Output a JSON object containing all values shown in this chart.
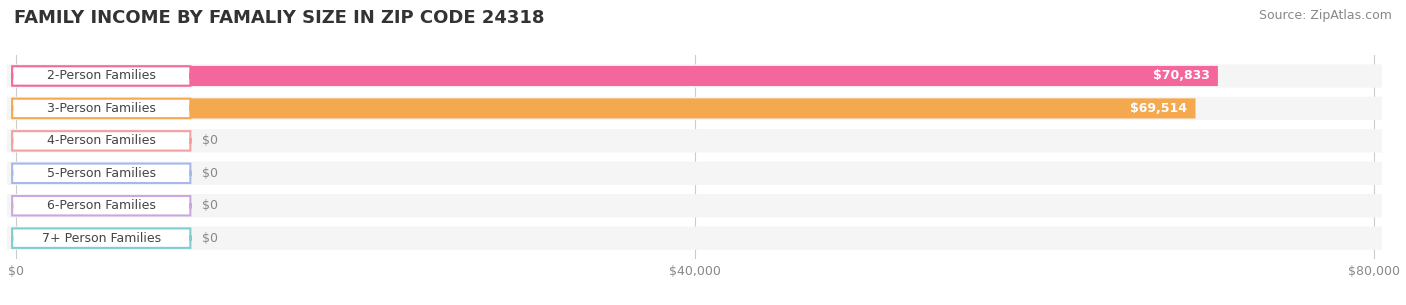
{
  "title": "FAMILY INCOME BY FAMALIY SIZE IN ZIP CODE 24318",
  "source": "Source: ZipAtlas.com",
  "categories": [
    "2-Person Families",
    "3-Person Families",
    "4-Person Families",
    "5-Person Families",
    "6-Person Families",
    "7+ Person Families"
  ],
  "values": [
    70833,
    69514,
    0,
    0,
    0,
    0
  ],
  "bar_colors": [
    "#f4679d",
    "#f5a94e",
    "#f4a0a0",
    "#a8b8e8",
    "#c9a8e0",
    "#7ecece"
  ],
  "bar_bg_color": "#eeeeee",
  "label_bg_color": "#ffffff",
  "value_labels": [
    "$70,833",
    "$69,514",
    "$0",
    "$0",
    "$0",
    "$0"
  ],
  "xlim": [
    0,
    80000
  ],
  "xticks": [
    0,
    40000,
    80000
  ],
  "xtick_labels": [
    "$0",
    "$40,000",
    "$80,000"
  ],
  "title_fontsize": 13,
  "label_fontsize": 9,
  "value_fontsize": 9,
  "source_fontsize": 9,
  "bg_color": "#ffffff",
  "bar_height": 0.62,
  "row_bg_color": "#f5f5f5"
}
